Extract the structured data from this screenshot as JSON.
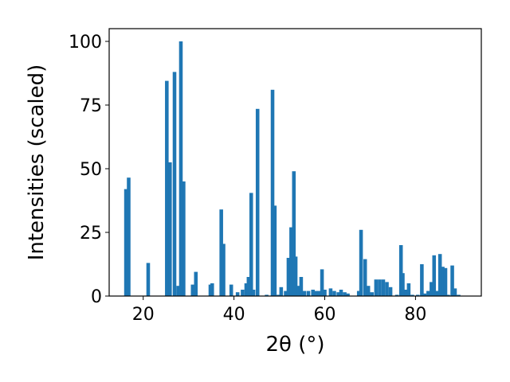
{
  "chart_data": {
    "type": "bar",
    "xlabel": "2θ (°)",
    "ylabel": "Intensities (scaled)",
    "xlim": [
      12.5,
      94.5
    ],
    "ylim": [
      0,
      105
    ],
    "xticks": [
      20,
      40,
      60,
      80
    ],
    "yticks": [
      0,
      25,
      50,
      75,
      100
    ],
    "grid": false,
    "bar_color": "#1f77b4",
    "bar_width": 0.8,
    "series": [
      {
        "x": [
          16.2,
          16.8,
          21.1,
          25.2,
          25.9,
          26.9,
          27.7,
          28.3,
          28.9,
          30.9,
          31.6,
          34.8,
          35.2,
          37.2,
          37.7,
          39.4,
          40.8,
          41.9,
          42.7,
          43.2,
          43.8,
          44.3,
          45.2,
          47.2,
          48.5,
          49.0,
          49.8,
          50.4,
          51.4,
          52.0,
          52.6,
          53.2,
          53.6,
          54.3,
          54.8,
          55.5,
          56.4,
          57.4,
          58.1,
          58.8,
          59.4,
          60.0,
          61.3,
          62.1,
          63.0,
          63.6,
          64.4,
          65.1,
          67.5,
          68.0,
          68.9,
          69.6,
          70.4,
          71.3,
          72.1,
          72.9,
          73.7,
          74.5,
          75.9,
          76.8,
          77.2,
          77.9,
          78.5,
          79.3,
          80.5,
          81.4,
          82.0,
          82.8,
          83.5,
          84.1,
          84.7,
          85.4,
          86.0,
          86.6,
          87.2,
          88.1,
          88.7,
          89.5
        ],
        "values": [
          42,
          46.5,
          13,
          84.5,
          52.5,
          88,
          4,
          100,
          45,
          4.5,
          9.5,
          4.5,
          5,
          34,
          20.5,
          4.5,
          1.5,
          2.5,
          5,
          7.5,
          40.5,
          2.5,
          73.5,
          0.5,
          81,
          35.5,
          0.5,
          3.5,
          2,
          15,
          27,
          49,
          15.5,
          4,
          7.5,
          2,
          2,
          2.5,
          2,
          2,
          10.5,
          2.5,
          3,
          2,
          1.5,
          2.5,
          1.5,
          1,
          2,
          26,
          14.5,
          4,
          1.5,
          6.5,
          6.5,
          6.5,
          5.5,
          3.5,
          0.5,
          20,
          9,
          2.5,
          5,
          0.5,
          0.5,
          12.5,
          1,
          2,
          5.5,
          16,
          2,
          16.5,
          11.5,
          11,
          0.5,
          12,
          3,
          0.5
        ]
      }
    ]
  }
}
